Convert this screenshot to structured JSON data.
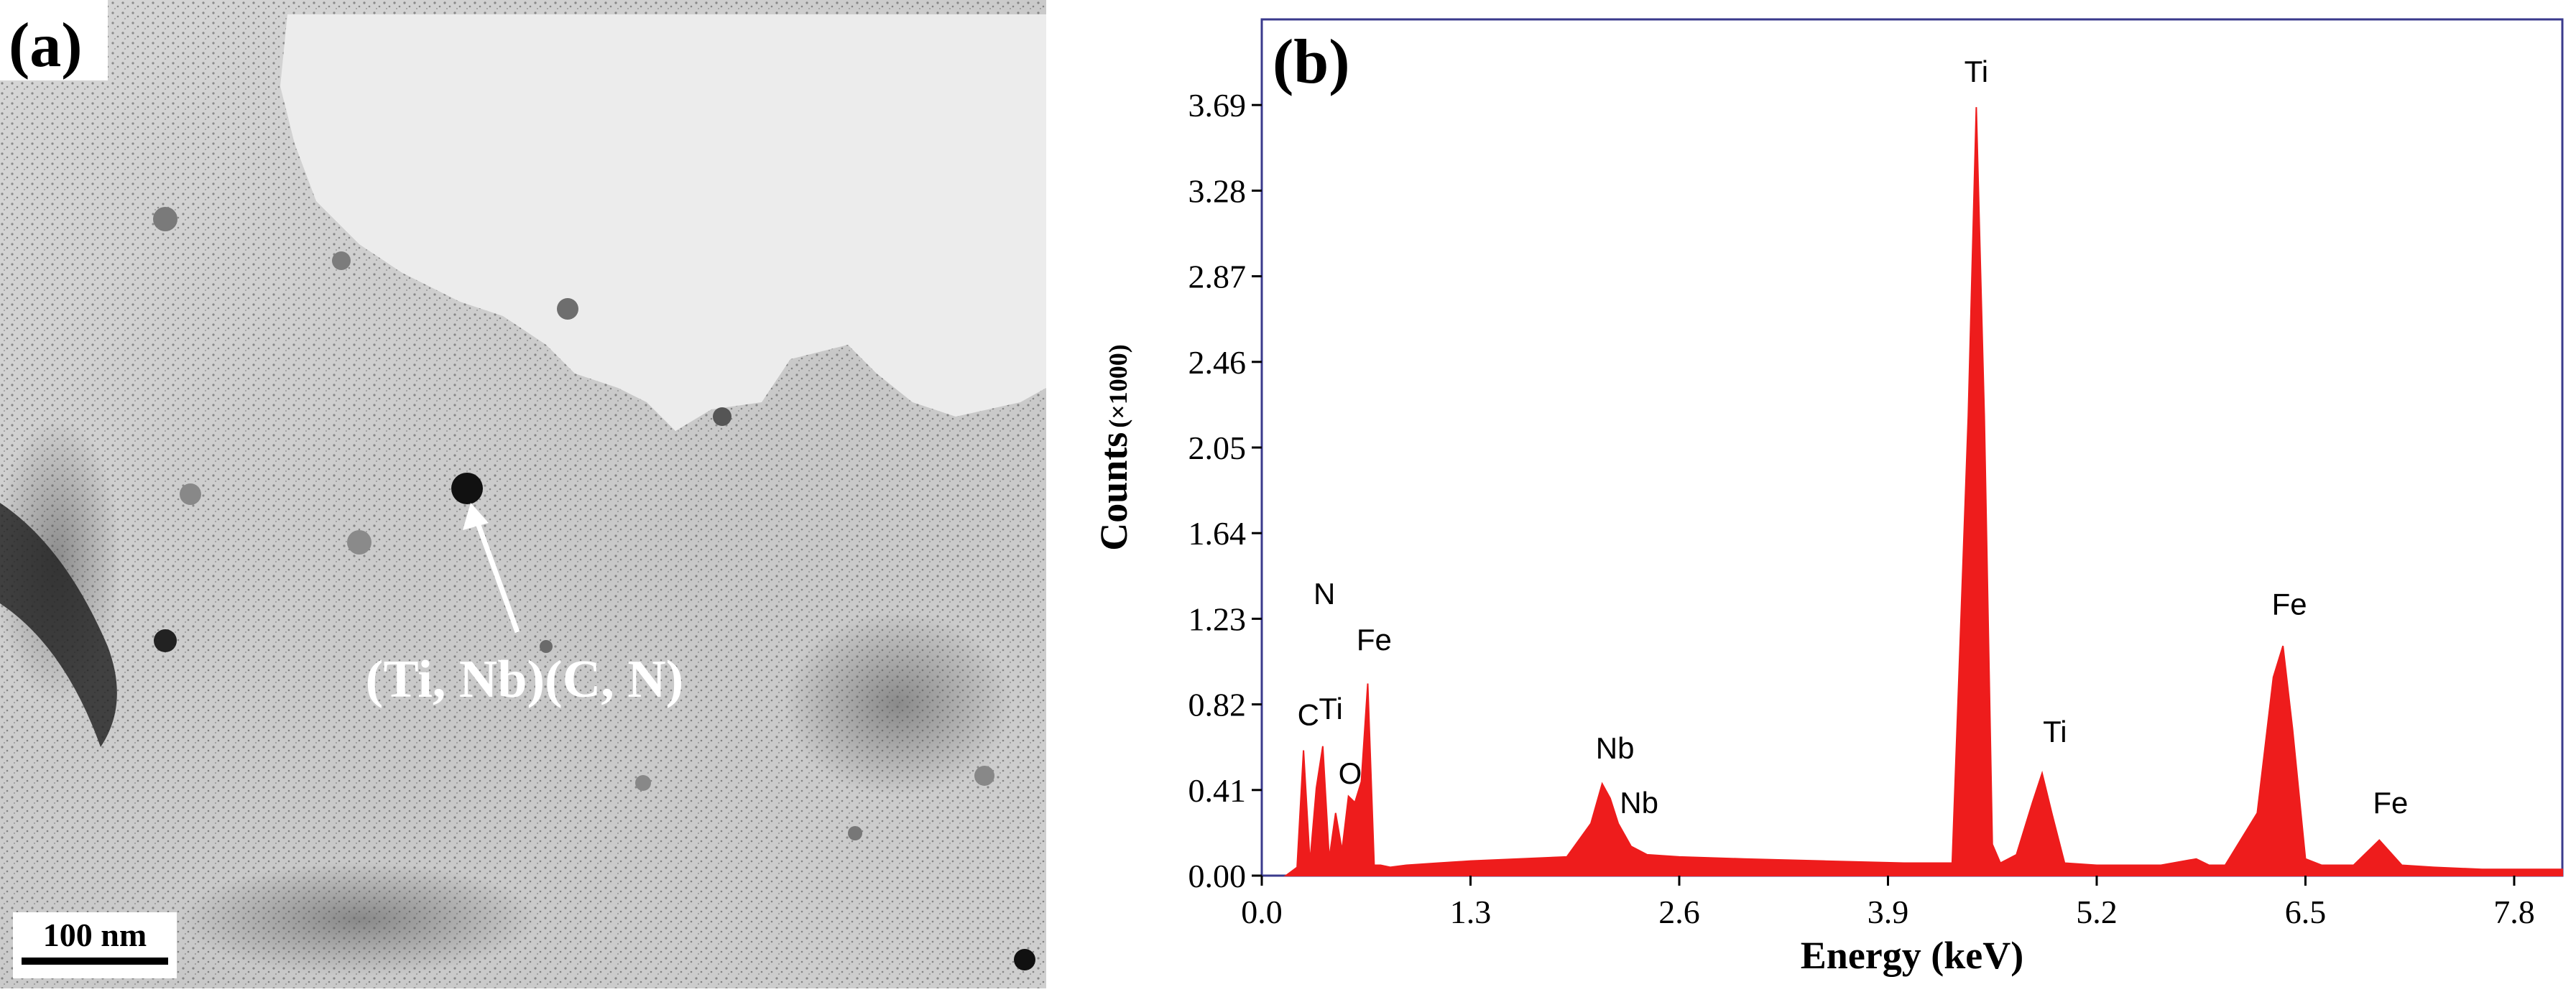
{
  "panel_a": {
    "label": "(a)",
    "annotation": "(Ti, Nb)(C, N)",
    "scale_bar": "100 nm"
  },
  "panel_b": {
    "label": "(b)"
  },
  "chart_data": {
    "type": "area",
    "xlabel": "Energy (keV)",
    "ylabel": "Counts",
    "ylabel_unit": "(×1000)",
    "xlim": [
      0.0,
      8.1
    ],
    "ylim": [
      0.0,
      4.1
    ],
    "x_ticks": [
      "0.0",
      "1.3",
      "2.6",
      "3.9",
      "5.2",
      "6.5",
      "7.8"
    ],
    "y_ticks": [
      "0.00",
      "0.41",
      "0.82",
      "1.23",
      "1.64",
      "2.05",
      "2.46",
      "2.87",
      "3.28",
      "3.69"
    ],
    "grid": false,
    "color": "#ee1c1c",
    "spectrum": {
      "x": [
        0.15,
        0.22,
        0.26,
        0.3,
        0.34,
        0.38,
        0.42,
        0.46,
        0.5,
        0.54,
        0.58,
        0.62,
        0.66,
        0.7,
        0.74,
        0.8,
        0.9,
        1.1,
        1.3,
        1.6,
        1.9,
        2.05,
        2.12,
        2.17,
        2.22,
        2.3,
        2.4,
        2.6,
        3.0,
        3.5,
        4.0,
        4.3,
        4.4,
        4.45,
        4.5,
        4.55,
        4.6,
        4.7,
        4.8,
        4.86,
        4.92,
        5.0,
        5.2,
        5.6,
        5.82,
        5.9,
        6.0,
        6.2,
        6.3,
        6.36,
        6.42,
        6.5,
        6.6,
        6.8,
        6.96,
        7.1,
        7.3,
        7.6,
        8.1
      ],
      "y": [
        0.0,
        0.04,
        0.6,
        0.06,
        0.42,
        0.62,
        0.08,
        0.3,
        0.12,
        0.38,
        0.35,
        0.45,
        0.92,
        0.05,
        0.05,
        0.04,
        0.05,
        0.06,
        0.07,
        0.08,
        0.09,
        0.25,
        0.44,
        0.37,
        0.25,
        0.14,
        0.1,
        0.09,
        0.08,
        0.07,
        0.06,
        0.06,
        2.2,
        3.68,
        2.2,
        0.15,
        0.06,
        0.1,
        0.35,
        0.49,
        0.3,
        0.06,
        0.05,
        0.05,
        0.08,
        0.05,
        0.05,
        0.3,
        0.95,
        1.1,
        0.7,
        0.08,
        0.05,
        0.05,
        0.17,
        0.05,
        0.04,
        0.03,
        0.03
      ]
    },
    "annotations": [
      {
        "text": "Ti",
        "x": 4.45,
        "y": 3.8
      },
      {
        "text": "N",
        "x": 0.39,
        "y": 1.3
      },
      {
        "text": "Fe",
        "x": 0.7,
        "y": 1.08
      },
      {
        "text": "C",
        "x": 0.29,
        "y": 0.72
      },
      {
        "text": "Ti",
        "x": 0.43,
        "y": 0.75
      },
      {
        "text": "O",
        "x": 0.55,
        "y": 0.44
      },
      {
        "text": "Nb",
        "x": 2.2,
        "y": 0.56
      },
      {
        "text": "Nb",
        "x": 2.35,
        "y": 0.3
      },
      {
        "text": "Ti",
        "x": 4.94,
        "y": 0.64
      },
      {
        "text": "Fe",
        "x": 6.4,
        "y": 1.25
      },
      {
        "text": "Fe",
        "x": 7.03,
        "y": 0.3
      }
    ]
  }
}
